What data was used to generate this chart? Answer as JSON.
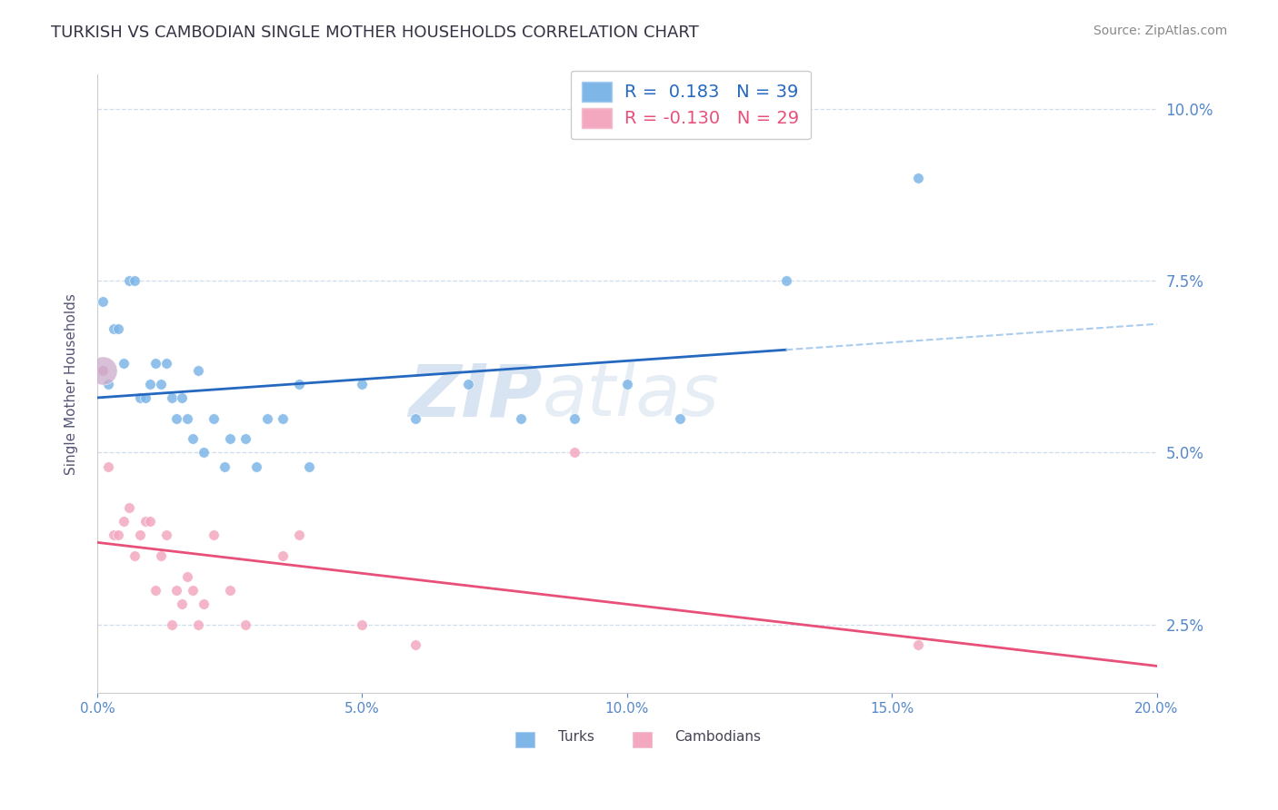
{
  "title": "TURKISH VS CAMBODIAN SINGLE MOTHER HOUSEHOLDS CORRELATION CHART",
  "source": "Source: ZipAtlas.com",
  "ylabel": "Single Mother Households",
  "xlim": [
    0.0,
    0.2
  ],
  "ylim": [
    0.015,
    0.105
  ],
  "xticks": [
    0.0,
    0.05,
    0.1,
    0.15,
    0.2
  ],
  "xticklabels": [
    "0.0%",
    "5.0%",
    "10.0%",
    "15.0%",
    "20.0%"
  ],
  "yticks": [
    0.025,
    0.05,
    0.075,
    0.1
  ],
  "yticklabels": [
    "2.5%",
    "5.0%",
    "7.5%",
    "10.0%"
  ],
  "legend_turks_r": "0.183",
  "legend_turks_n": "39",
  "legend_cambodians_r": "-0.130",
  "legend_cambodians_n": "29",
  "turks_color": "#7EB6E8",
  "cambodians_color": "#F4A8C0",
  "turks_line_color": "#2468C0",
  "cambodians_line_color": "#E8507A",
  "dashed_line_color": "#AACCEE",
  "tick_label_color": "#5588CC",
  "watermark_color": "#C8DCF0",
  "background_color": "#FFFFFF",
  "grid_color": "#CCDDEE",
  "turks_x": [
    0.001,
    0.001,
    0.002,
    0.003,
    0.004,
    0.005,
    0.006,
    0.007,
    0.008,
    0.009,
    0.01,
    0.011,
    0.012,
    0.013,
    0.014,
    0.015,
    0.016,
    0.017,
    0.018,
    0.019,
    0.02,
    0.022,
    0.024,
    0.025,
    0.028,
    0.03,
    0.032,
    0.035,
    0.038,
    0.04,
    0.05,
    0.06,
    0.07,
    0.08,
    0.09,
    0.1,
    0.11,
    0.13,
    0.155
  ],
  "turks_y": [
    0.062,
    0.072,
    0.06,
    0.068,
    0.068,
    0.063,
    0.075,
    0.075,
    0.058,
    0.058,
    0.06,
    0.063,
    0.06,
    0.063,
    0.058,
    0.055,
    0.058,
    0.055,
    0.052,
    0.062,
    0.05,
    0.055,
    0.048,
    0.052,
    0.052,
    0.048,
    0.055,
    0.055,
    0.06,
    0.048,
    0.06,
    0.055,
    0.06,
    0.055,
    0.055,
    0.06,
    0.055,
    0.075,
    0.09
  ],
  "turks_large": [
    0
  ],
  "cambodians_x": [
    0.001,
    0.002,
    0.003,
    0.004,
    0.005,
    0.006,
    0.007,
    0.008,
    0.009,
    0.01,
    0.011,
    0.012,
    0.013,
    0.014,
    0.015,
    0.016,
    0.017,
    0.018,
    0.019,
    0.02,
    0.022,
    0.025,
    0.028,
    0.035,
    0.038,
    0.05,
    0.06,
    0.09,
    0.155
  ],
  "cambodians_y": [
    0.062,
    0.048,
    0.038,
    0.038,
    0.04,
    0.042,
    0.035,
    0.038,
    0.04,
    0.04,
    0.03,
    0.035,
    0.038,
    0.025,
    0.03,
    0.028,
    0.032,
    0.03,
    0.025,
    0.028,
    0.038,
    0.03,
    0.025,
    0.035,
    0.038,
    0.025,
    0.022,
    0.05,
    0.022
  ],
  "cambodians_large": [
    0
  ],
  "watermark": "ZIPatlas"
}
